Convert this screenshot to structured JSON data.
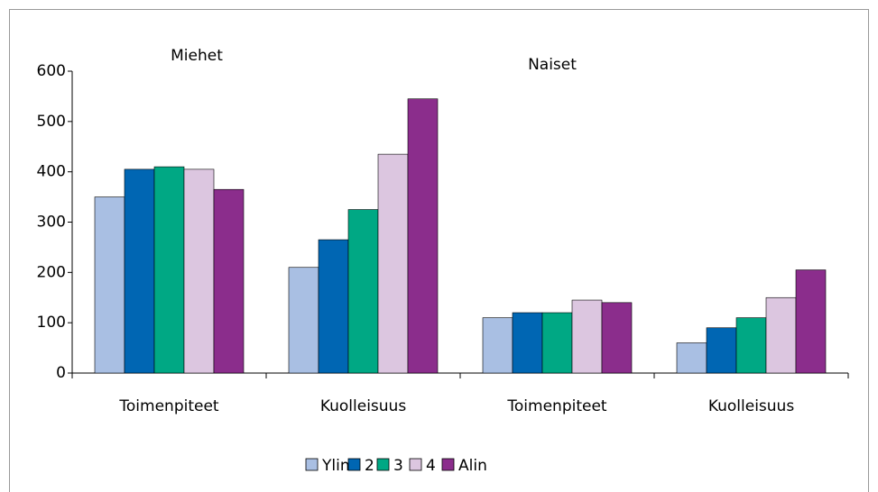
{
  "chart_data": {
    "type": "bar",
    "annotations": [
      "Miehet",
      "Naiset"
    ],
    "categories": [
      "Toimenpiteet",
      "Kuolleisuus",
      "Toimenpiteet",
      "Kuolleisuus"
    ],
    "series": [
      {
        "name": "Ylin",
        "color": "#a9bfe3",
        "values": [
          350,
          210,
          110,
          60
        ]
      },
      {
        "name": "2",
        "color": "#0066b3",
        "values": [
          405,
          265,
          120,
          90
        ]
      },
      {
        "name": "3",
        "color": "#00a884",
        "values": [
          410,
          325,
          120,
          110
        ]
      },
      {
        "name": "4",
        "color": "#dcc6e0",
        "values": [
          405,
          435,
          145,
          150
        ]
      },
      {
        "name": "Alin",
        "color": "#8b2d8c",
        "values": [
          365,
          545,
          140,
          205
        ]
      }
    ],
    "ylim": [
      0,
      600
    ],
    "yticks": [
      0,
      100,
      200,
      300,
      400,
      500,
      600
    ],
    "grid": false,
    "legend": "bottom"
  }
}
